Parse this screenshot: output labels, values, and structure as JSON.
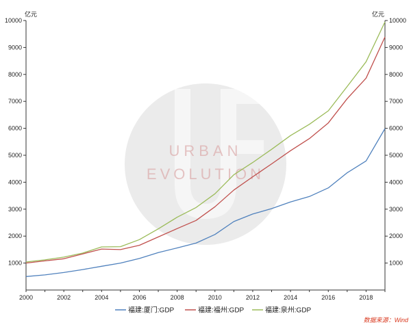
{
  "chart_data": {
    "type": "line",
    "unit_left": "亿元",
    "unit_right": "亿元",
    "x": [
      2000,
      2001,
      2002,
      2003,
      2004,
      2005,
      2006,
      2007,
      2008,
      2009,
      2010,
      2011,
      2012,
      2013,
      2014,
      2015,
      2016,
      2017,
      2018,
      2019
    ],
    "xlim": [
      2000,
      2019
    ],
    "x_ticks": [
      "2000",
      "2002",
      "2004",
      "2006",
      "2008",
      "2010",
      "2012",
      "2014",
      "2016",
      "2018"
    ],
    "ylim": [
      0,
      10000
    ],
    "y_ticks": [
      "1000",
      "2000",
      "3000",
      "4000",
      "5000",
      "6000",
      "7000",
      "8000",
      "9000",
      "10000"
    ],
    "series": [
      {
        "name": "福建:厦门:GDP",
        "color": "#4f81bd",
        "values": [
          500,
          560,
          650,
          760,
          880,
          1000,
          1170,
          1390,
          1560,
          1740,
          2060,
          2540,
          2820,
          3020,
          3270,
          3470,
          3790,
          4350,
          4790,
          5990
        ]
      },
      {
        "name": "福建:福州:GDP",
        "color": "#c0504d",
        "values": [
          1000,
          1080,
          1160,
          1340,
          1520,
          1500,
          1660,
          1970,
          2280,
          2580,
          3090,
          3710,
          4200,
          4680,
          5170,
          5620,
          6200,
          7100,
          7860,
          9390
        ]
      },
      {
        "name": "福建:泉州:GDP",
        "color": "#9bbb59",
        "values": [
          1040,
          1120,
          1220,
          1370,
          1600,
          1610,
          1870,
          2270,
          2700,
          3060,
          3570,
          4280,
          4730,
          5220,
          5730,
          6150,
          6650,
          7550,
          8470,
          9950
        ]
      }
    ],
    "grid": false,
    "legend_position": "bottom"
  },
  "watermark": {
    "line1": "URBAN",
    "line2": "EVOLUTION",
    "monogram": "UE"
  },
  "source": "数据来源：Wind"
}
